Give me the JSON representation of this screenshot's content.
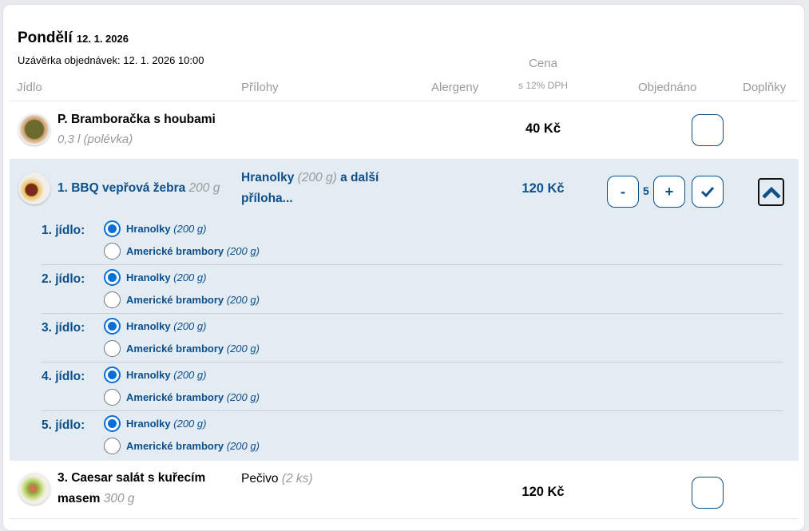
{
  "day": {
    "name": "Pondělí",
    "date": "12. 1. 2026",
    "deadline": "Uzávěrka objednávek: 12. 1. 2026 10:00"
  },
  "headers": {
    "food": "Jídlo",
    "sides": "Přílohy",
    "allergens": "Alergeny",
    "price": "Cena",
    "price_note": "s 12% DPH",
    "ordered": "Objednáno",
    "extras": "Doplňky"
  },
  "rows": [
    {
      "name": "P. Bramboračka s houbami",
      "detail": "0,3 l (polévka)",
      "price": "40 Kč",
      "icon": "soup-bowl"
    },
    {
      "name": "1. BBQ vepřová žebra",
      "detail": "200 g",
      "side": "Hranolky",
      "side_detail": "(200 g)",
      "side_more": "a další příloha...",
      "price": "120 Kč",
      "quantity": "5",
      "minus": "-",
      "plus": "+",
      "icon": "ribs-plate",
      "groups": [
        {
          "label": "1. jídlo:",
          "options": [
            {
              "name": "Hranolky",
              "detail": "(200 g)",
              "selected": true
            },
            {
              "name": "Americké brambory",
              "detail": "(200 g)",
              "selected": false
            }
          ]
        },
        {
          "label": "2. jídlo:",
          "options": [
            {
              "name": "Hranolky",
              "detail": "(200 g)",
              "selected": true
            },
            {
              "name": "Americké brambory",
              "detail": "(200 g)",
              "selected": false
            }
          ]
        },
        {
          "label": "3. jídlo:",
          "options": [
            {
              "name": "Hranolky",
              "detail": "(200 g)",
              "selected": true
            },
            {
              "name": "Americké brambory",
              "detail": "(200 g)",
              "selected": false
            }
          ]
        },
        {
          "label": "4. jídlo:",
          "options": [
            {
              "name": "Hranolky",
              "detail": "(200 g)",
              "selected": true
            },
            {
              "name": "Americké brambory",
              "detail": "(200 g)",
              "selected": false
            }
          ]
        },
        {
          "label": "5. jídlo:",
          "options": [
            {
              "name": "Hranolky",
              "detail": "(200 g)",
              "selected": true
            },
            {
              "name": "Americké brambory",
              "detail": "(200 g)",
              "selected": false
            }
          ]
        }
      ]
    },
    {
      "name": "3. Caesar salát s kuřecím masem",
      "detail": "300 g",
      "side": "Pečivo",
      "side_detail": "(2 ks)",
      "price": "120 Kč",
      "icon": "salad-plate"
    }
  ],
  "colors": {
    "accent": "#0d4f8b",
    "radio": "#0a6fd6",
    "highlight": "#e3ebf3"
  }
}
